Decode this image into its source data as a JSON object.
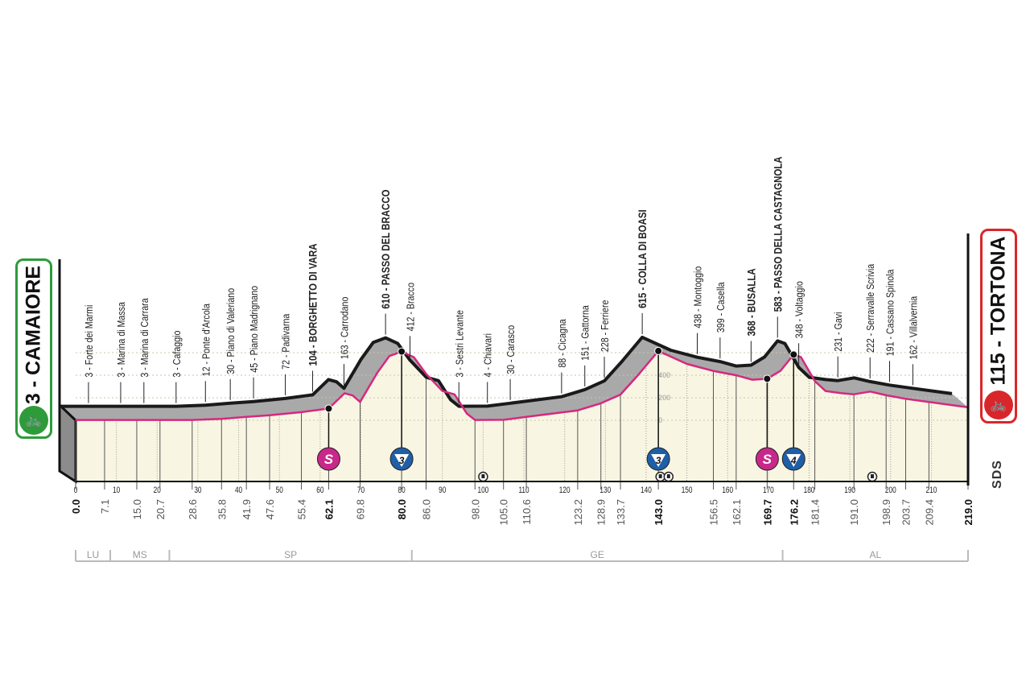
{
  "start": {
    "label": "3 - CAMAIORE",
    "color": "#2e9b3a",
    "icon": "cyclist-start-icon"
  },
  "finish": {
    "label": "115 - TORTONA",
    "color": "#d9262a",
    "icon": "cyclist-finish-icon"
  },
  "logo": "SDS",
  "colors": {
    "road": "#d6287f",
    "ridge": "#1a1a1a",
    "side": "#a9a9a9",
    "ground": "#f8f6e3",
    "sprint": "#c8288a",
    "gpm": "#1f5fa8"
  },
  "chart_data": {
    "type": "area",
    "xlabel": "",
    "ylabel": "",
    "xlim": [
      0,
      219
    ],
    "ylim": [
      0,
      700
    ],
    "grid": true,
    "x_ticks": [
      0,
      10,
      20,
      30,
      40,
      50,
      60,
      70,
      80,
      90,
      100,
      110,
      120,
      130,
      140,
      150,
      160,
      170,
      180,
      190,
      200,
      210
    ],
    "elevation_ticks": [
      "600",
      "400",
      "200",
      "0"
    ],
    "elevation_ticks_values": [
      600,
      400,
      200,
      0
    ],
    "profile": [
      [
        0,
        3
      ],
      [
        7.1,
        3
      ],
      [
        15.0,
        3
      ],
      [
        20.7,
        3
      ],
      [
        28.6,
        3
      ],
      [
        35.8,
        12
      ],
      [
        41.9,
        30
      ],
      [
        47.6,
        45
      ],
      [
        55.4,
        72
      ],
      [
        62.1,
        104
      ],
      [
        66,
        240
      ],
      [
        68,
        220
      ],
      [
        69.8,
        163
      ],
      [
        74,
        420
      ],
      [
        77,
        570
      ],
      [
        80.0,
        610
      ],
      [
        83,
        560
      ],
      [
        86.0,
        412
      ],
      [
        90,
        260
      ],
      [
        93,
        230
      ],
      [
        96,
        60
      ],
      [
        98.0,
        3
      ],
      [
        105.0,
        4
      ],
      [
        110.6,
        30
      ],
      [
        123.2,
        88
      ],
      [
        128.9,
        151
      ],
      [
        133.7,
        228
      ],
      [
        138,
        400
      ],
      [
        143.0,
        615
      ],
      [
        150,
        500
      ],
      [
        156.5,
        438
      ],
      [
        162.1,
        399
      ],
      [
        166,
        360
      ],
      [
        169.7,
        368
      ],
      [
        173,
        440
      ],
      [
        176.2,
        583
      ],
      [
        178,
        560
      ],
      [
        181.4,
        348
      ],
      [
        184,
        260
      ],
      [
        188,
        240
      ],
      [
        191.0,
        231
      ],
      [
        195,
        255
      ],
      [
        198.9,
        222
      ],
      [
        203.7,
        191
      ],
      [
        209.4,
        162
      ],
      [
        219.0,
        115
      ]
    ],
    "places": [
      {
        "km": 7.1,
        "label": "3 - Forte dei Marmi",
        "bold": false
      },
      {
        "km": 15.0,
        "label": "3 - Marina di Massa",
        "bold": false
      },
      {
        "km": 20.7,
        "label": "3 - Marina di Carrara",
        "bold": false
      },
      {
        "km": 28.6,
        "label": "3 - Cafaggio",
        "bold": false
      },
      {
        "km": 35.8,
        "label": "12 - Ponte d'Arcola",
        "bold": false
      },
      {
        "km": 41.9,
        "label": "30 - Piano di Valeriano",
        "bold": false
      },
      {
        "km": 47.6,
        "label": "45 - Piano Madrignano",
        "bold": false
      },
      {
        "km": 55.4,
        "label": "72 - Padivarna",
        "bold": false
      },
      {
        "km": 62.1,
        "label": "104 - BORGHETTO DI VARA",
        "bold": true
      },
      {
        "km": 69.8,
        "label": "163 - Carrodano",
        "bold": false
      },
      {
        "km": 80.0,
        "label": "610 - PASSO DEL BRACCO",
        "bold": true
      },
      {
        "km": 86.0,
        "label": "412 - Bracco",
        "bold": false
      },
      {
        "km": 98.0,
        "label": "3 - Sestri Levante",
        "bold": false
      },
      {
        "km": 105.0,
        "label": "4 - Chiavari",
        "bold": false
      },
      {
        "km": 110.6,
        "label": "30 - Carasco",
        "bold": false
      },
      {
        "km": 123.2,
        "label": "88 - Cicagna",
        "bold": false
      },
      {
        "km": 128.9,
        "label": "151 - Gattorna",
        "bold": false
      },
      {
        "km": 133.7,
        "label": "228 - Ferriere",
        "bold": false
      },
      {
        "km": 143.0,
        "label": "615 - COLLA DI BOASI",
        "bold": true
      },
      {
        "km": 156.5,
        "label": "438 - Montoggio",
        "bold": false
      },
      {
        "km": 162.1,
        "label": "399 - Casella",
        "bold": false
      },
      {
        "km": 169.7,
        "label": "368 - BUSALLA",
        "bold": true
      },
      {
        "km": 176.2,
        "label": "583 - PASSO DELLA CASTAGNOLA",
        "bold": true
      },
      {
        "km": 181.4,
        "label": "348 - Voltaggio",
        "bold": false
      },
      {
        "km": 191.0,
        "label": "231 - Gavi",
        "bold": false
      },
      {
        "km": 198.9,
        "label": "222 - Serravalle Scrivia",
        "bold": false
      },
      {
        "km": 203.7,
        "label": "191 - Cassano Spinola",
        "bold": false
      },
      {
        "km": 209.4,
        "label": "162 - Villalvernia",
        "bold": false
      }
    ],
    "distances": [
      {
        "km": 0.0,
        "label": "0.0",
        "bold": true
      },
      {
        "km": 7.1,
        "label": "7.1",
        "bold": false
      },
      {
        "km": 15.0,
        "label": "15.0",
        "bold": false
      },
      {
        "km": 20.7,
        "label": "20.7",
        "bold": false
      },
      {
        "km": 28.6,
        "label": "28.6",
        "bold": false
      },
      {
        "km": 35.8,
        "label": "35.8",
        "bold": false
      },
      {
        "km": 41.9,
        "label": "41.9",
        "bold": false
      },
      {
        "km": 47.6,
        "label": "47.6",
        "bold": false
      },
      {
        "km": 55.4,
        "label": "55.4",
        "bold": false
      },
      {
        "km": 62.1,
        "label": "62.1",
        "bold": true
      },
      {
        "km": 69.8,
        "label": "69.8",
        "bold": false
      },
      {
        "km": 80.0,
        "label": "80.0",
        "bold": true
      },
      {
        "km": 86.0,
        "label": "86.0",
        "bold": false
      },
      {
        "km": 98.0,
        "label": "98.0",
        "bold": false
      },
      {
        "km": 105.0,
        "label": "105.0",
        "bold": false
      },
      {
        "km": 110.6,
        "label": "110.6",
        "bold": false
      },
      {
        "km": 123.2,
        "label": "123.2",
        "bold": false
      },
      {
        "km": 128.9,
        "label": "128.9",
        "bold": false
      },
      {
        "km": 133.7,
        "label": "133.7",
        "bold": false
      },
      {
        "km": 143.0,
        "label": "143.0",
        "bold": true
      },
      {
        "km": 156.5,
        "label": "156.5",
        "bold": false
      },
      {
        "km": 162.1,
        "label": "162.1",
        "bold": false
      },
      {
        "km": 169.7,
        "label": "169.7",
        "bold": true
      },
      {
        "km": 176.2,
        "label": "176.2",
        "bold": true
      },
      {
        "km": 181.4,
        "label": "181.4",
        "bold": false
      },
      {
        "km": 191.0,
        "label": "191.0",
        "bold": false
      },
      {
        "km": 198.9,
        "label": "198.9",
        "bold": false
      },
      {
        "km": 203.7,
        "label": "203.7",
        "bold": false
      },
      {
        "km": 209.4,
        "label": "209.4",
        "bold": false
      },
      {
        "km": 219.0,
        "label": "219.0",
        "bold": true
      }
    ],
    "markers": [
      {
        "km": 62.1,
        "type": "sprint",
        "label": "S"
      },
      {
        "km": 80.0,
        "type": "gpm",
        "label": "3"
      },
      {
        "km": 143.0,
        "type": "gpm",
        "label": "3"
      },
      {
        "km": 169.7,
        "type": "sprint",
        "label": "S"
      },
      {
        "km": 176.2,
        "type": "gpm",
        "label": "4"
      }
    ],
    "tunnels": [
      100,
      143.5,
      145.5,
      195.5
    ],
    "provinces": [
      {
        "label": "LU",
        "from": 0,
        "to": 8.5
      },
      {
        "label": "MS",
        "from": 8.5,
        "to": 23
      },
      {
        "label": "SP",
        "from": 23,
        "to": 82.5
      },
      {
        "label": "GE",
        "from": 82.5,
        "to": 173.5
      },
      {
        "label": "AL",
        "from": 173.5,
        "to": 219
      }
    ]
  }
}
